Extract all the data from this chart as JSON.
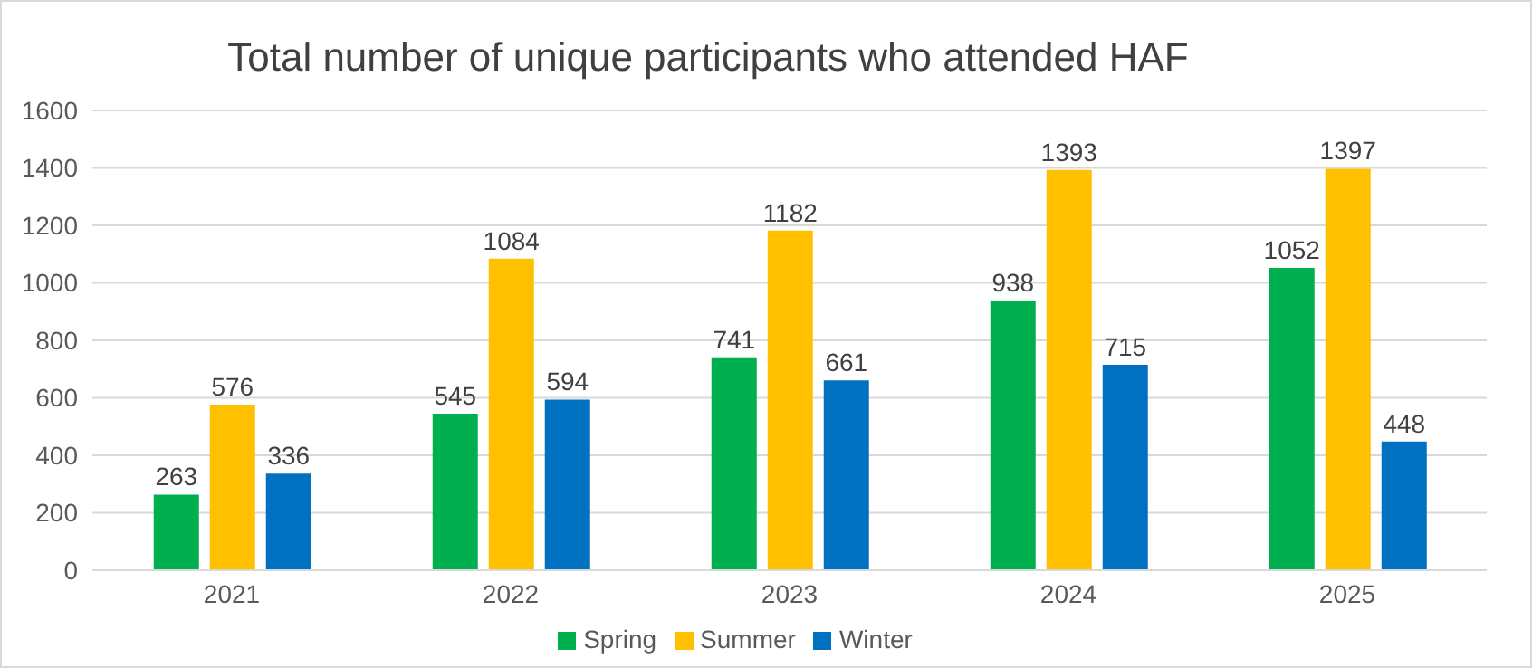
{
  "chart_data": {
    "type": "bar",
    "title": "Total number of unique participants who attended HAF",
    "categories": [
      "2021",
      "2022",
      "2023",
      "2024",
      "2025"
    ],
    "series": [
      {
        "name": "Spring",
        "color": "#00b050",
        "values": [
          263,
          545,
          741,
          938,
          1052
        ]
      },
      {
        "name": "Summer",
        "color": "#ffc000",
        "values": [
          576,
          1084,
          1182,
          1393,
          1397
        ]
      },
      {
        "name": "Winter",
        "color": "#0070c0",
        "values": [
          336,
          594,
          661,
          715,
          448
        ]
      }
    ],
    "ylim": [
      0,
      1600
    ],
    "yticks": [
      0,
      200,
      400,
      600,
      800,
      1000,
      1200,
      1400,
      1600
    ],
    "grid": "y",
    "legend": "bottom",
    "data_labels": true
  }
}
